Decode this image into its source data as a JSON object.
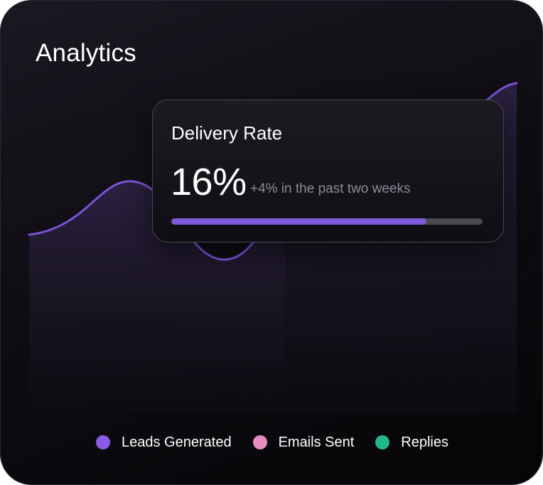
{
  "header": {
    "title": "Analytics"
  },
  "tooltip": {
    "title": "Delivery Rate",
    "value": "16%",
    "change": "+4% in the past two weeks",
    "progress_fraction": 0.82
  },
  "legend": {
    "items": [
      {
        "label": "Leads Generated",
        "color": "#8a5ce6"
      },
      {
        "label": "Emails Sent",
        "color": "#e68bbd"
      },
      {
        "label": "Replies",
        "color": "#22b98a"
      }
    ]
  },
  "colors": {
    "line": "#7b54d6",
    "area_top": "#2b2041",
    "progress_fill": "#7d5bd8",
    "progress_track": "#4a4a4e"
  }
}
